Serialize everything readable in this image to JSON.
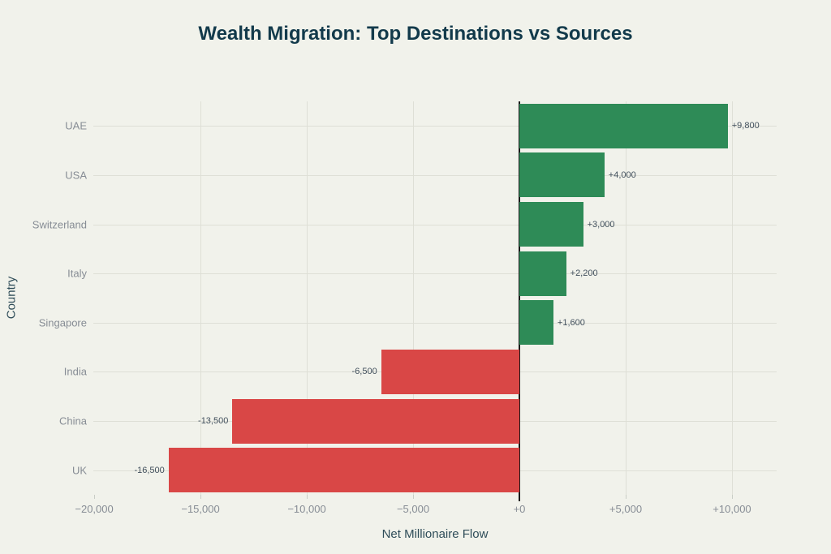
{
  "colors": {
    "background": "#f1f2eb",
    "title": "#123a4b",
    "axis_title": "#2f4d59",
    "tick_label": "#878d95",
    "bar_value_label": "#42505d",
    "positive_bar": "#2e8b57",
    "negative_bar": "#d94746",
    "gridline": "#dedfd6",
    "zero_line": "#1c1c1c"
  },
  "chart_data": {
    "type": "bar",
    "orientation": "horizontal",
    "title": "Wealth Migration: Top Destinations vs Sources",
    "xlabel": "Net Millionaire Flow",
    "ylabel": "Country",
    "categories": [
      "UAE",
      "USA",
      "Switzerland",
      "Italy",
      "Singapore",
      "India",
      "China",
      "UK"
    ],
    "values": [
      9800,
      4000,
      3000,
      2200,
      1600,
      -6500,
      -13500,
      -16500
    ],
    "bar_labels": [
      "+9,800",
      "+4,000",
      "+3,000",
      "+2,200",
      "+1,600",
      "-6,500",
      "-13,500",
      "-16,500"
    ],
    "xlim": [
      -20040,
      12100
    ],
    "x_ticks": [
      {
        "value": -20000,
        "label": "−20,000",
        "grid": false,
        "zero": false
      },
      {
        "value": -15000,
        "label": "−15,000",
        "grid": true,
        "zero": false
      },
      {
        "value": -10000,
        "label": "−10,000",
        "grid": true,
        "zero": false
      },
      {
        "value": -5000,
        "label": "−5,000",
        "grid": true,
        "zero": false
      },
      {
        "value": 0,
        "label": "+0",
        "grid": false,
        "zero": true
      },
      {
        "value": 5000,
        "label": "+5,000",
        "grid": true,
        "zero": false
      },
      {
        "value": 10000,
        "label": "+10,000",
        "grid": true,
        "zero": false
      }
    ],
    "grid": true,
    "legend_position": "none"
  }
}
